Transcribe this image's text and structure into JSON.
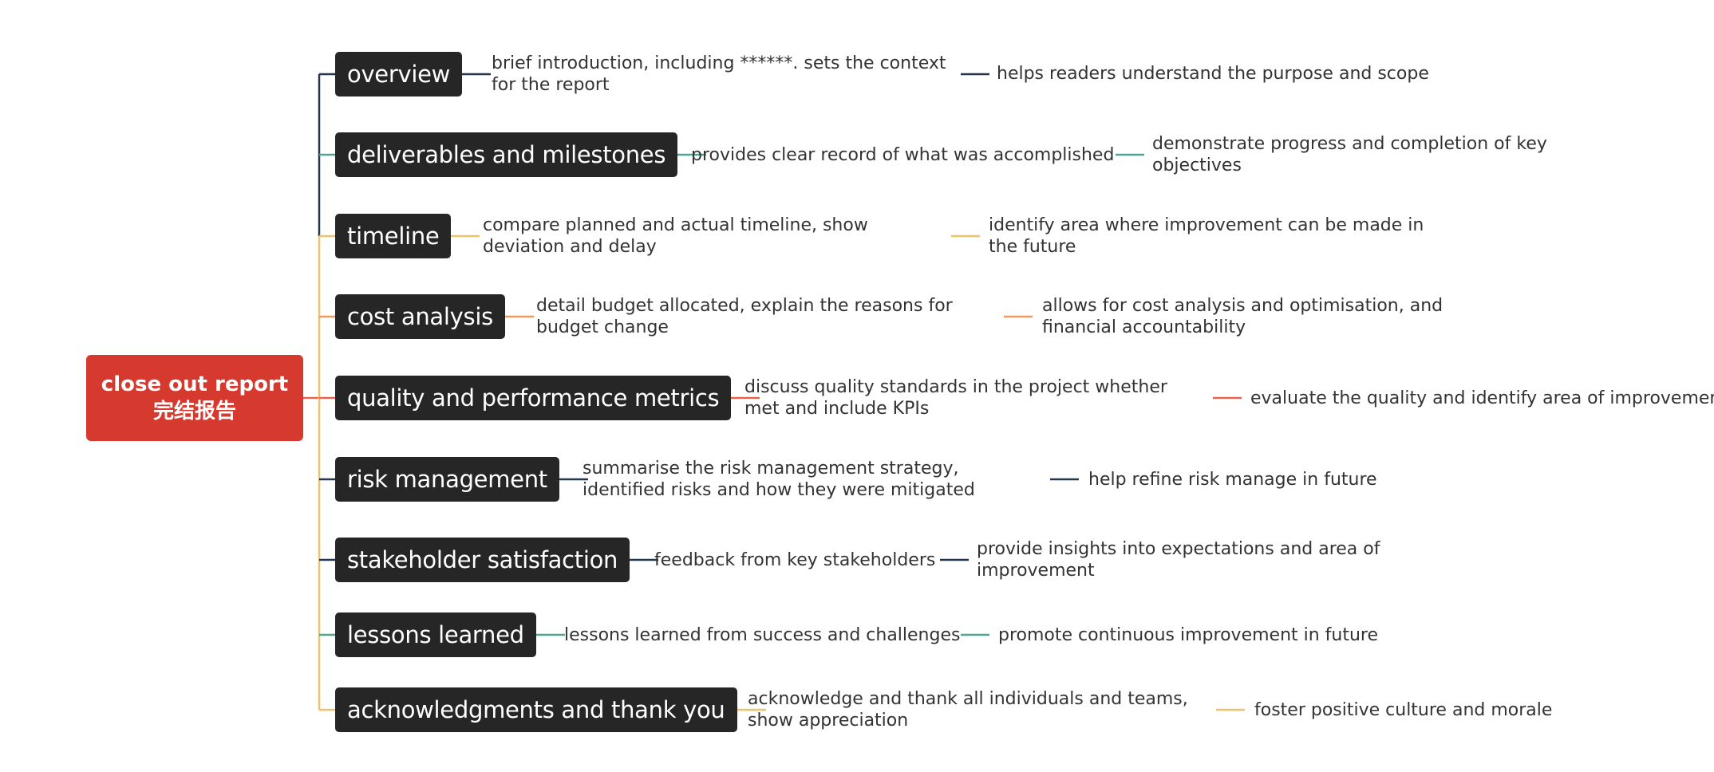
{
  "root": {
    "title_en": "close out report",
    "title_zh": "完结报告"
  },
  "colors": {
    "root": "#d63a2f",
    "node": "#262626",
    "navy": "#23364f",
    "teal": "#4ea594",
    "yellow": "#f0c26e",
    "orange": "#ef9a5c",
    "red": "#e4644c"
  },
  "branches": [
    {
      "label": "overview",
      "desc": "brief introduction, including ******. sets the context for the report",
      "purpose": "helps readers understand the purpose and scope",
      "color": "#23364f"
    },
    {
      "label": "deliverables and milestones",
      "desc": "provides clear record of what was accomplished",
      "purpose": "demonstrate progress and completion of key objectives",
      "color": "#4ea594"
    },
    {
      "label": "timeline",
      "desc": "compare planned and actual timeline, show deviation and delay",
      "purpose": "identify area where improvement can be made in the future",
      "color": "#f0c26e"
    },
    {
      "label": "cost analysis",
      "desc": "detail budget allocated, explain the reasons for budget change",
      "purpose": "allows for cost analysis and optimisation, and financial accountability",
      "color": "#ef9a5c"
    },
    {
      "label": "quality and performance metrics",
      "desc": "discuss quality standards in the project whether met and include KPIs",
      "purpose": "evaluate the quality and identify area of improvement",
      "color": "#e4644c"
    },
    {
      "label": "risk management",
      "desc": "summarise the risk management strategy, identified risks and how they were mitigated",
      "purpose": "help refine risk manage in future",
      "color": "#23364f"
    },
    {
      "label": "stakeholder satisfaction",
      "desc": "feedback from key stakeholders",
      "purpose": "provide insights into expectations and area of improvement",
      "color": "#23364f"
    },
    {
      "label": "lessons learned",
      "desc": "lessons learned from success and challenges",
      "purpose": "promote continuous improvement in future",
      "color": "#4ea594"
    },
    {
      "label": "acknowledgments and thank you",
      "desc": "acknowledge and thank all individuals and teams, show appreciation",
      "purpose": "foster positive culture and morale",
      "color": "#f0c26e"
    }
  ]
}
